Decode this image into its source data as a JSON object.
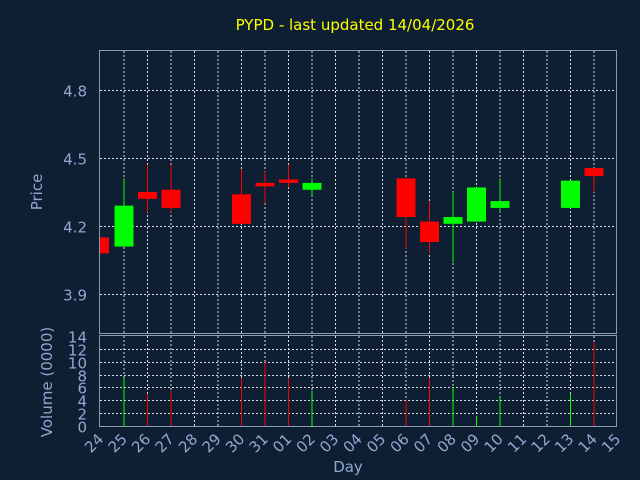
{
  "chart_data": {
    "type": "candlestick",
    "title": "PYPD - last updated 14/04/2026",
    "xlabel": "Day",
    "price_ylabel": "Price",
    "volume_ylabel": "Volume (0000)",
    "x_ticks": [
      "24",
      "25",
      "26",
      "27",
      "28",
      "29",
      "30",
      "31",
      "01",
      "02",
      "03",
      "04",
      "05",
      "06",
      "07",
      "08",
      "09",
      "10",
      "11",
      "12",
      "13",
      "14",
      "15"
    ],
    "price_ylim": [
      3.73,
      4.97
    ],
    "price_ticks": [
      "3.9",
      "4.2",
      "4.5",
      "4.8"
    ],
    "volume_ylim": [
      0,
      14
    ],
    "volume_ticks": [
      "0",
      "2",
      "4",
      "6",
      "8",
      "10",
      "12",
      "14"
    ],
    "grid": true,
    "colors": {
      "up": "#00ff00",
      "down": "#ff0000",
      "title": "#ffff00",
      "axis_text": "#8ea8d0",
      "background": "#0e1f33"
    },
    "candles": [
      {
        "date": "24",
        "open": 4.15,
        "close": 4.08,
        "high": 4.15,
        "low": 4.08,
        "volume": 0
      },
      {
        "date": "25",
        "open": 4.11,
        "close": 4.29,
        "high": 4.41,
        "low": 4.11,
        "volume": 7.5
      },
      {
        "date": "26",
        "open": 4.35,
        "close": 4.32,
        "high": 4.47,
        "low": 4.26,
        "volume": 5.0
      },
      {
        "date": "27",
        "open": 4.36,
        "close": 4.28,
        "high": 4.47,
        "low": 4.26,
        "volume": 5.5
      },
      {
        "date": "30",
        "open": 4.34,
        "close": 4.21,
        "high": 4.45,
        "low": 4.21,
        "volume": 7.5
      },
      {
        "date": "31",
        "open": 4.39,
        "close": 4.375,
        "high": 4.44,
        "low": 4.3,
        "volume": 10.0
      },
      {
        "date": "01",
        "open": 4.405,
        "close": 4.39,
        "high": 4.47,
        "low": 4.37,
        "volume": 7.5
      },
      {
        "date": "02",
        "open": 4.36,
        "close": 4.39,
        "high": 4.41,
        "low": 4.33,
        "volume": 5.5
      },
      {
        "date": "06",
        "open": 4.41,
        "close": 4.24,
        "high": 4.41,
        "low": 4.1,
        "volume": 4.0
      },
      {
        "date": "07",
        "open": 4.22,
        "close": 4.13,
        "high": 4.31,
        "low": 4.08,
        "volume": 7.5
      },
      {
        "date": "08",
        "open": 4.21,
        "close": 4.24,
        "high": 4.35,
        "low": 4.04,
        "volume": 6.0
      },
      {
        "date": "09",
        "open": 4.22,
        "close": 4.37,
        "high": 4.37,
        "low": 4.22,
        "volume": 1.5
      },
      {
        "date": "10",
        "open": 4.28,
        "close": 4.31,
        "high": 4.41,
        "low": 4.26,
        "volume": 4.5
      },
      {
        "date": "13",
        "open": 4.28,
        "close": 4.4,
        "high": 4.4,
        "low": 4.28,
        "volume": 5.0
      },
      {
        "date": "14",
        "open": 4.455,
        "close": 4.42,
        "high": 4.455,
        "low": 4.35,
        "volume": 13.0
      }
    ]
  }
}
